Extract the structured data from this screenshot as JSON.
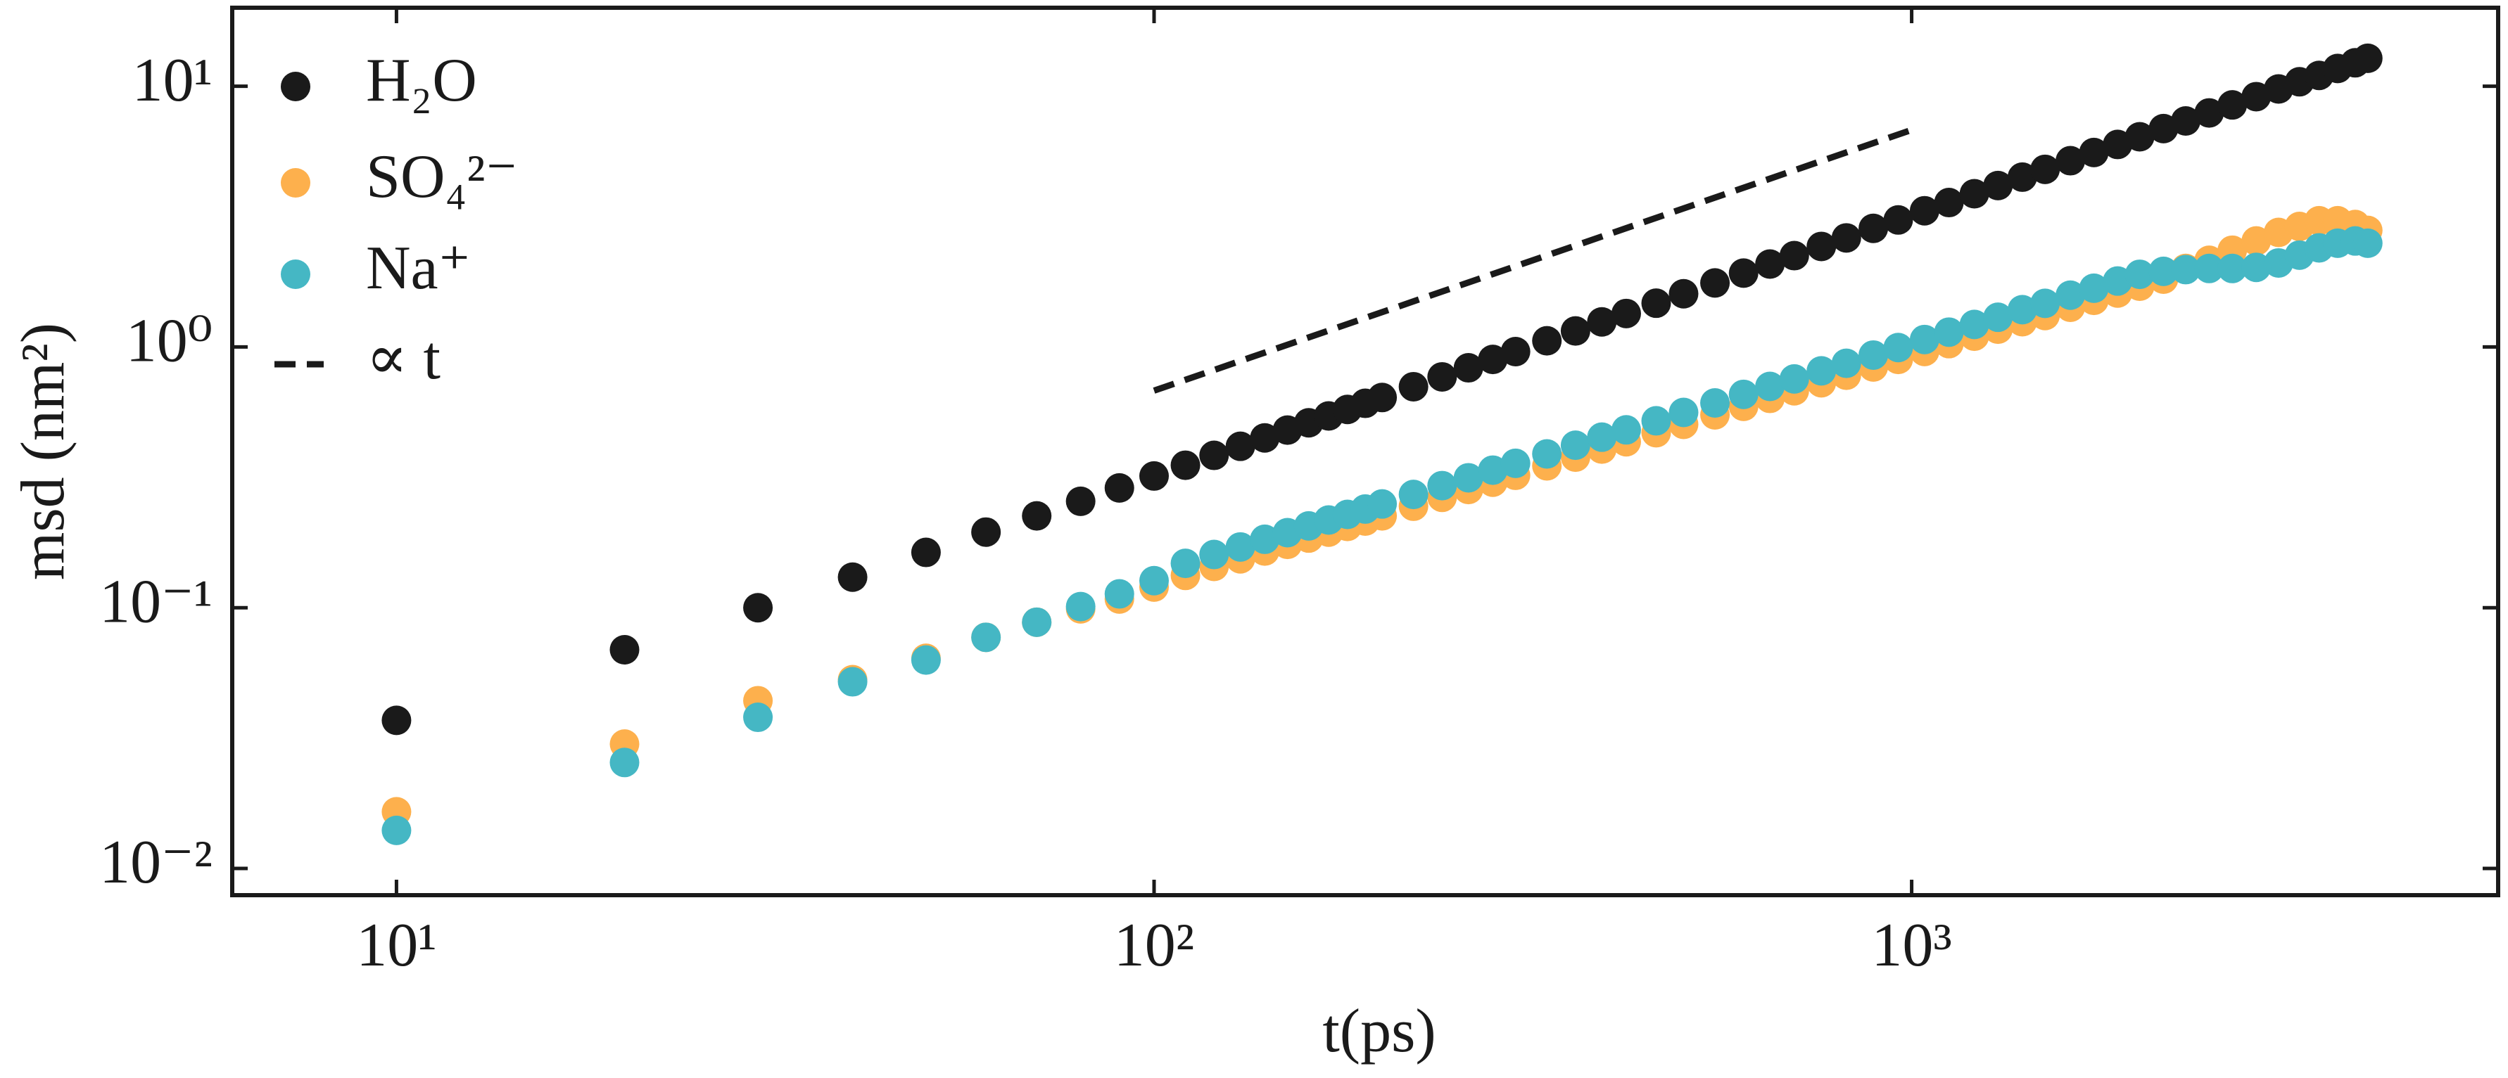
{
  "chart_data": {
    "type": "scatter",
    "x_label": "t(ps)",
    "y_label": "msd (nm²)",
    "xscale": "log",
    "yscale": "log",
    "xlim": [
      6.07,
      5945
    ],
    "ylim": [
      0.0079,
      20
    ],
    "xticks": [
      {
        "value": 10,
        "label": "10¹"
      },
      {
        "value": 100,
        "label": "10²"
      },
      {
        "value": 1000,
        "label": "10³"
      }
    ],
    "yticks": [
      {
        "value": 0.01,
        "label": "10⁻²"
      },
      {
        "value": 0.1,
        "label": "10⁻¹"
      },
      {
        "value": 1,
        "label": "10⁰"
      },
      {
        "value": 10,
        "label": "10¹"
      }
    ],
    "legend": "upper left",
    "grid": false,
    "x": [
      10,
      20,
      30,
      40,
      50,
      60,
      70,
      80,
      90,
      100,
      110,
      120,
      130,
      140,
      150,
      160,
      170,
      180,
      190,
      200,
      220,
      240,
      260,
      280,
      300,
      330,
      360,
      390,
      420,
      460,
      500,
      550,
      600,
      650,
      700,
      760,
      820,
      890,
      960,
      1040,
      1120,
      1210,
      1300,
      1400,
      1500,
      1620,
      1740,
      1870,
      2000,
      2150,
      2300,
      2470,
      2650,
      2850,
      3050,
      3250,
      3450,
      3650,
      3850,
      4000
    ],
    "series": [
      {
        "name": "H₂O",
        "color": "#1a1a1a",
        "style": "marker",
        "values": [
          0.037,
          0.069,
          0.1,
          0.131,
          0.163,
          0.195,
          0.225,
          0.256,
          0.288,
          0.32,
          0.352,
          0.384,
          0.416,
          0.448,
          0.48,
          0.512,
          0.544,
          0.576,
          0.608,
          0.64,
          0.704,
          0.768,
          0.832,
          0.896,
          0.96,
          1.056,
          1.152,
          1.248,
          1.344,
          1.472,
          1.6,
          1.76,
          1.92,
          2.08,
          2.24,
          2.43,
          2.62,
          2.85,
          3.07,
          3.33,
          3.58,
          3.87,
          4.16,
          4.48,
          4.8,
          5.18,
          5.57,
          5.98,
          6.4,
          6.88,
          7.36,
          7.9,
          8.48,
          9.12,
          9.76,
          10.4,
          11.0,
          11.7,
          12.3,
          12.8
        ]
      },
      {
        "name": "SO₄²⁻",
        "color": "#fdb04d",
        "style": "marker",
        "values": [
          0.0165,
          0.03,
          0.044,
          0.053,
          0.064,
          0.077,
          0.088,
          0.099,
          0.108,
          0.12,
          0.133,
          0.144,
          0.154,
          0.165,
          0.175,
          0.185,
          0.195,
          0.205,
          0.215,
          0.225,
          0.245,
          0.265,
          0.284,
          0.303,
          0.322,
          0.35,
          0.378,
          0.406,
          0.433,
          0.469,
          0.505,
          0.549,
          0.592,
          0.635,
          0.679,
          0.729,
          0.779,
          0.838,
          0.896,
          0.961,
          1.03,
          1.1,
          1.17,
          1.25,
          1.32,
          1.42,
          1.51,
          1.61,
          1.71,
          1.82,
          2.0,
          2.15,
          2.35,
          2.55,
          2.75,
          2.9,
          3.05,
          3.05,
          2.95,
          2.8
        ]
      },
      {
        "name": "Na⁺",
        "color": "#45b7c4",
        "style": "marker",
        "values": [
          0.014,
          0.0255,
          0.038,
          0.052,
          0.063,
          0.077,
          0.088,
          0.101,
          0.113,
          0.127,
          0.148,
          0.16,
          0.171,
          0.183,
          0.194,
          0.206,
          0.217,
          0.228,
          0.239,
          0.25,
          0.272,
          0.294,
          0.315,
          0.337,
          0.358,
          0.389,
          0.42,
          0.451,
          0.481,
          0.521,
          0.561,
          0.61,
          0.658,
          0.706,
          0.754,
          0.81,
          0.866,
          0.931,
          0.995,
          1.068,
          1.14,
          1.22,
          1.3,
          1.39,
          1.47,
          1.58,
          1.68,
          1.79,
          1.9,
          1.95,
          1.98,
          2.0,
          2.0,
          2.02,
          2.1,
          2.25,
          2.4,
          2.5,
          2.55,
          2.5
        ]
      },
      {
        "name": "∝ t",
        "color": "#1a1a1a",
        "style": "dashed",
        "x": [
          100,
          1000
        ],
        "values": [
          0.68,
          6.8
        ]
      }
    ]
  }
}
